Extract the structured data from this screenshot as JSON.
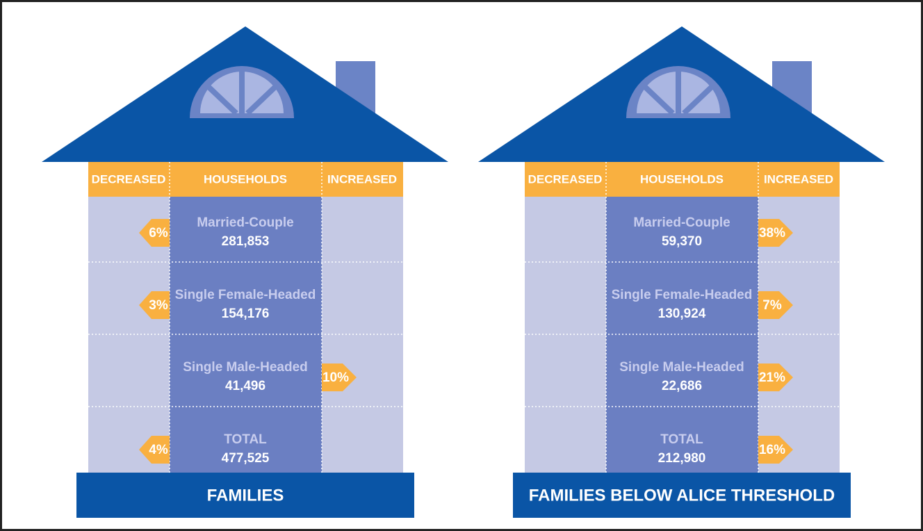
{
  "houses": [
    {
      "title": "FAMILIES",
      "headers": {
        "decreased": "DECREASED",
        "households": "HOUSEHOLDS",
        "increased": "INCREASED"
      },
      "rows": [
        {
          "label": "Married-Couple",
          "count": "281,853",
          "decreased": "6%"
        },
        {
          "label": "Single Female-Headed",
          "count": "154,176",
          "decreased": "3%"
        },
        {
          "label": "Single Male-Headed",
          "count": "41,496",
          "increased": "10%"
        },
        {
          "label": "TOTAL",
          "count": "477,525",
          "decreased": "4%"
        }
      ]
    },
    {
      "title": "FAMILIES BELOW ALICE THRESHOLD",
      "headers": {
        "decreased": "DECREASED",
        "households": "HOUSEHOLDS",
        "increased": "INCREASED"
      },
      "rows": [
        {
          "label": "Married-Couple",
          "count": "59,370",
          "increased": "38%"
        },
        {
          "label": "Single Female-Headed",
          "count": "130,924",
          "increased": "7%"
        },
        {
          "label": "Single Male-Headed",
          "count": "22,686",
          "increased": "21%"
        },
        {
          "label": "TOTAL",
          "count": "212,980",
          "increased": "16%"
        }
      ]
    }
  ]
}
